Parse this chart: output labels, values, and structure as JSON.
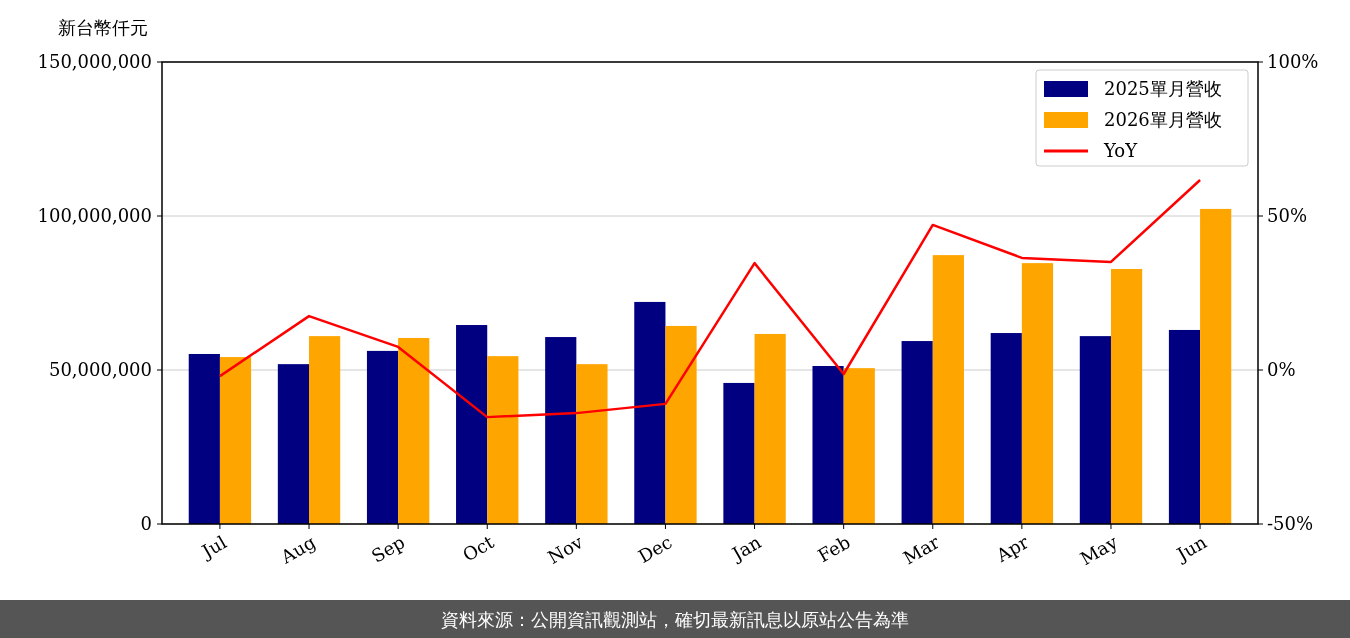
{
  "chart_data": {
    "type": "bar",
    "ylabel": "新台幣仟元",
    "categories": [
      "Jul",
      "Aug",
      "Sep",
      "Oct",
      "Nov",
      "Dec",
      "Jan",
      "Feb",
      "Mar",
      "Apr",
      "May",
      "Jun"
    ],
    "series": [
      {
        "name": "2025單月營收",
        "color": "#000080",
        "values": [
          55200000,
          51900000,
          56200000,
          64600000,
          60700000,
          72100000,
          45800000,
          51300000,
          59400000,
          62000000,
          61000000,
          63000000
        ]
      },
      {
        "name": "2026單月營收",
        "color": "#ffa500",
        "values": [
          54200000,
          61000000,
          60400000,
          54500000,
          51900000,
          64300000,
          61700000,
          50600000,
          87300000,
          84700000,
          82800000,
          102300000
        ]
      },
      {
        "name": "YoY",
        "type": "line",
        "axis": "y2",
        "color": "#ff0000",
        "values": [
          -2,
          17.5,
          7.5,
          -15.3,
          -14,
          -11,
          34.7,
          -1.3,
          47.1,
          36.4,
          35.1,
          61.7
        ]
      }
    ],
    "ylim": [
      0,
      150000000
    ],
    "yticks": [
      {
        "value": 0,
        "label": "0"
      },
      {
        "value": 50000000,
        "label": "50,000,000"
      },
      {
        "value": 100000000,
        "label": "100,000,000"
      },
      {
        "value": 150000000,
        "label": "150,000,000"
      }
    ],
    "y2lim": [
      -50,
      100
    ],
    "y2ticks": [
      {
        "value": -50,
        "label": "-50%"
      },
      {
        "value": 0,
        "label": "0%"
      },
      {
        "value": 50,
        "label": "50%"
      },
      {
        "value": 100,
        "label": "100%"
      }
    ],
    "grid": "y",
    "legend": "top right",
    "annotations": [
      "資料來源：公開資訊觀測站，確切最新訊息以原站公告為準"
    ]
  }
}
